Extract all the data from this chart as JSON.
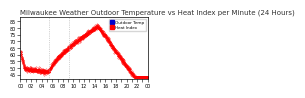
{
  "title": "Milwaukee Weather Outdoor Temperature vs Heat Index per Minute (24 Hours)",
  "legend_labels": [
    "Outdoor Temp",
    "Heat Index"
  ],
  "legend_colors": [
    "#0000cc",
    "#ff0000"
  ],
  "bg_color": "#ffffff",
  "line_color": "#ff0000",
  "vline_x": [
    318,
    548
  ],
  "vline_color": "#aaaaaa",
  "ylim": [
    42,
    88
  ],
  "ytick_labels": [
    "45",
    "50",
    "55",
    "60",
    "65",
    "70",
    "75",
    "80",
    "85"
  ],
  "ytick_vals": [
    45,
    50,
    55,
    60,
    65,
    70,
    75,
    80,
    85
  ],
  "title_fontsize": 5,
  "tick_fontsize": 3.5
}
